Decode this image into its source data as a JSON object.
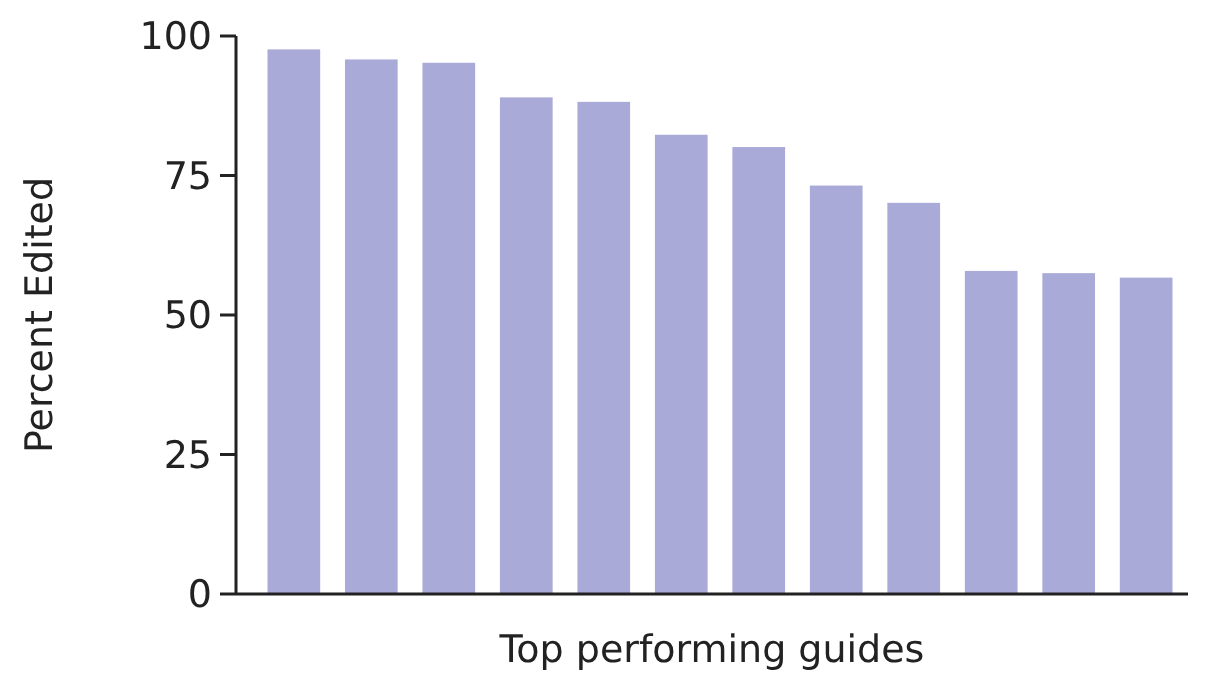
{
  "chart_data": {
    "type": "bar",
    "xlabel": "Top performing guides",
    "ylabel": "Percent Edited",
    "categories": [
      null,
      null,
      null,
      null,
      null,
      null,
      null,
      null,
      null,
      null,
      null,
      null
    ],
    "values": [
      97.6,
      95.8,
      95.2,
      89,
      88.2,
      82.3,
      80.1,
      73.2,
      70.1,
      57.9,
      57.5,
      56.7
    ],
    "color": "#aaaad8",
    "ylim": [
      0,
      100
    ],
    "yticks": [
      0,
      25,
      50,
      75,
      100
    ],
    "grid": false
  }
}
